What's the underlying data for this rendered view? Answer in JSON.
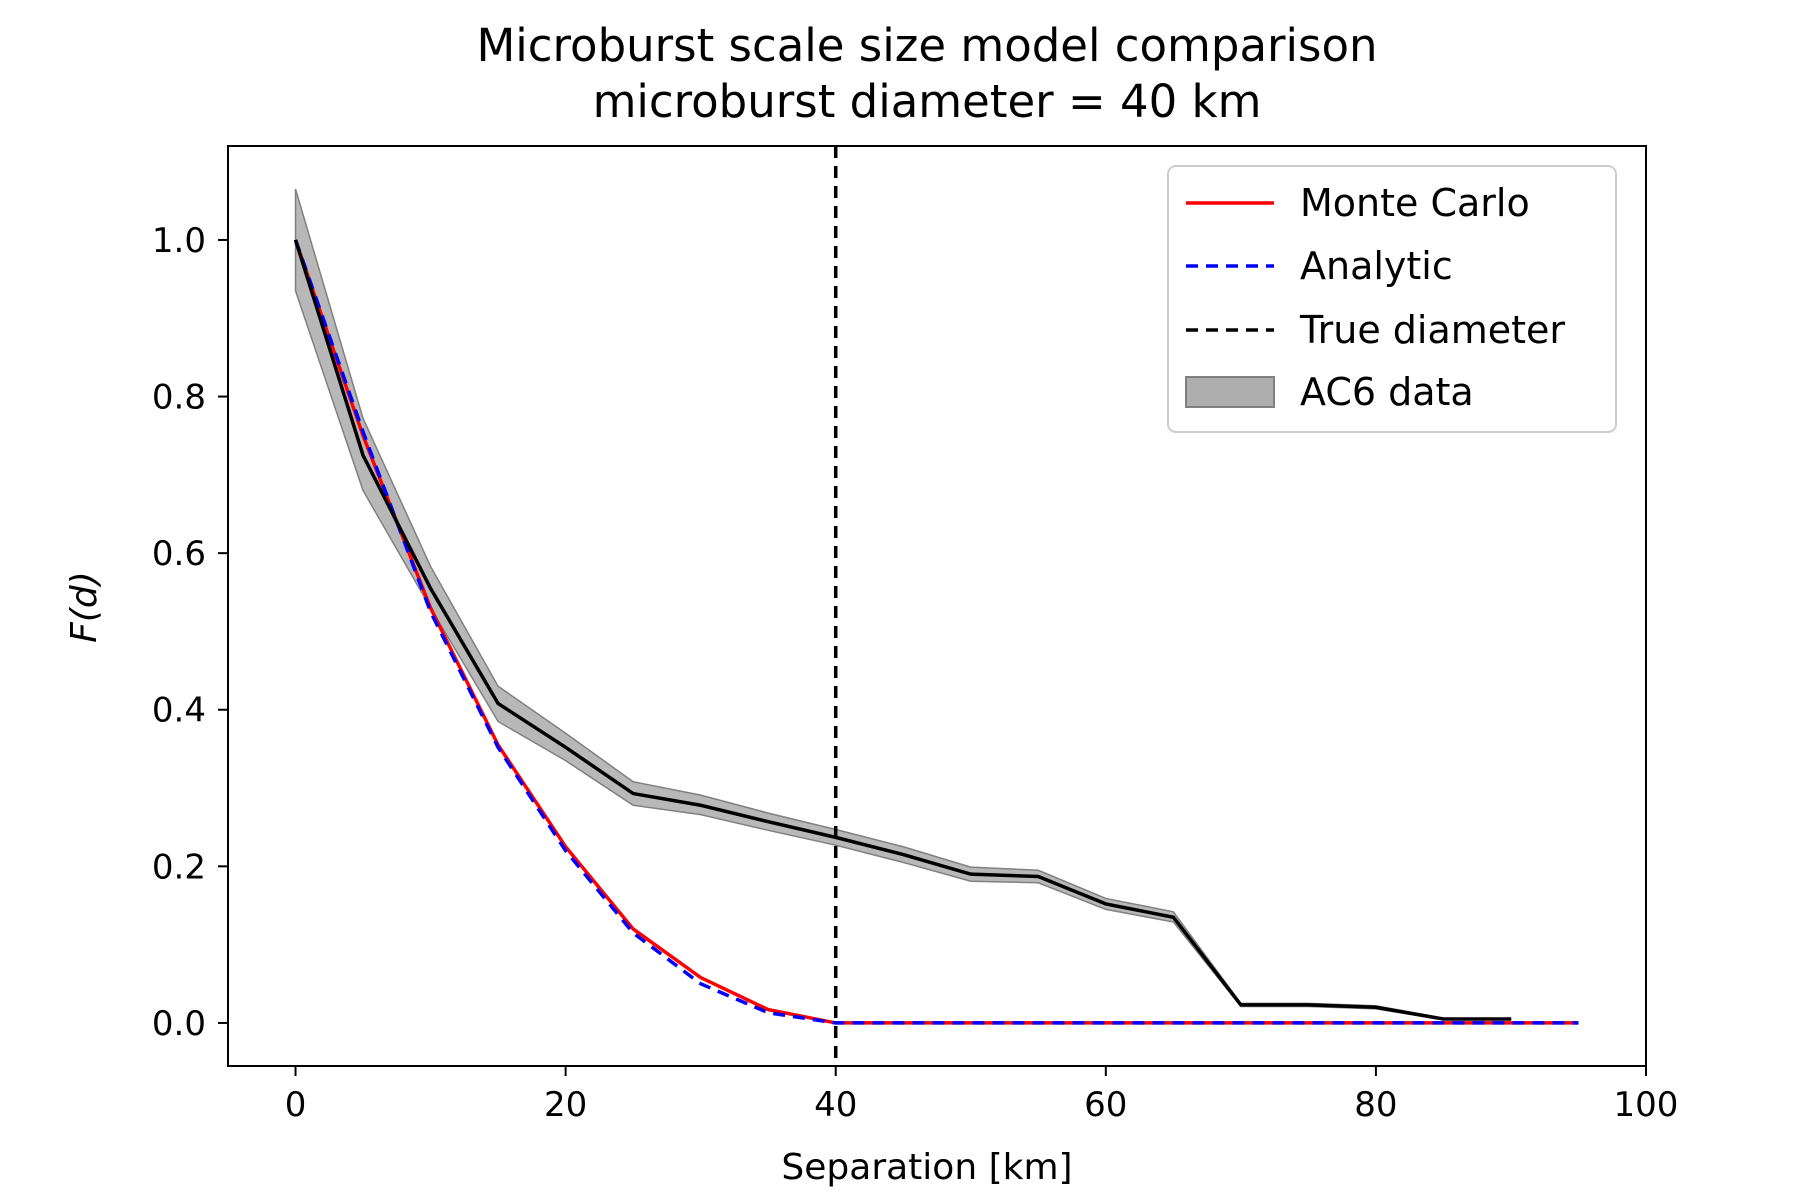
{
  "chart_data": {
    "type": "line",
    "title": "Microburst scale size model comparison",
    "subtitle": "microburst diameter = 40 km",
    "xlabel": "Separation [km]",
    "ylabel": "F(d)",
    "xlim": [
      -5,
      100
    ],
    "ylim": [
      -0.055,
      1.12
    ],
    "xticks": [
      0,
      20,
      40,
      60,
      80,
      100
    ],
    "yticks": [
      0.0,
      0.2,
      0.4,
      0.6,
      0.8,
      1.0
    ],
    "xtick_labels": [
      "0",
      "20",
      "40",
      "60",
      "80",
      "100"
    ],
    "ytick_labels": [
      "0.0",
      "0.2",
      "0.4",
      "0.6",
      "0.8",
      "1.0"
    ],
    "grid": false,
    "legend_position": "top-right",
    "series": [
      {
        "name": "Monte Carlo",
        "style": "solid",
        "color": "#ff0000",
        "x": [
          0,
          5,
          10,
          15,
          20,
          25,
          30,
          35,
          40,
          45,
          50,
          55,
          60,
          65,
          70,
          75,
          80,
          85,
          90,
          95
        ],
        "y": [
          1.0,
          0.75,
          0.53,
          0.355,
          0.225,
          0.12,
          0.058,
          0.017,
          0.0,
          0.0,
          0.0,
          0.0,
          0.0,
          0.0,
          0.0,
          0.0,
          0.0,
          0.0,
          0.0,
          0.0
        ]
      },
      {
        "name": "Analytic",
        "style": "dashed",
        "color": "#0000ff",
        "x": [
          0,
          5,
          10,
          15,
          20,
          25,
          30,
          35,
          40,
          45,
          50,
          55,
          60,
          65,
          70,
          75,
          80,
          85,
          90,
          95
        ],
        "y": [
          1.0,
          0.755,
          0.525,
          0.352,
          0.22,
          0.115,
          0.05,
          0.013,
          0.0,
          0.0,
          0.0,
          0.0,
          0.0,
          0.0,
          0.0,
          0.0,
          0.0,
          0.0,
          0.0,
          0.0
        ]
      },
      {
        "name": "True diameter",
        "style": "dashed",
        "color": "#000000",
        "type": "vline",
        "x": 40
      },
      {
        "name": "AC6 data",
        "style": "band",
        "color": "#000000",
        "band_color": "#a0a0a0",
        "x": [
          0,
          5,
          10,
          15,
          20,
          25,
          30,
          35,
          40,
          45,
          50,
          55,
          60,
          65,
          70,
          75,
          80,
          85,
          90
        ],
        "y": [
          1.0,
          0.725,
          0.555,
          0.408,
          0.352,
          0.293,
          0.278,
          0.257,
          0.237,
          0.215,
          0.19,
          0.187,
          0.152,
          0.135,
          0.023,
          0.023,
          0.02,
          0.005,
          0.005
        ],
        "lower": [
          0.935,
          0.68,
          0.53,
          0.385,
          0.335,
          0.278,
          0.266,
          0.246,
          0.227,
          0.205,
          0.181,
          0.179,
          0.145,
          0.129,
          0.021,
          0.021,
          0.018,
          0.004,
          0.004
        ],
        "upper": [
          1.065,
          0.772,
          0.583,
          0.43,
          0.37,
          0.308,
          0.291,
          0.268,
          0.247,
          0.225,
          0.199,
          0.195,
          0.159,
          0.142,
          0.025,
          0.025,
          0.022,
          0.006,
          0.006
        ]
      }
    ]
  }
}
